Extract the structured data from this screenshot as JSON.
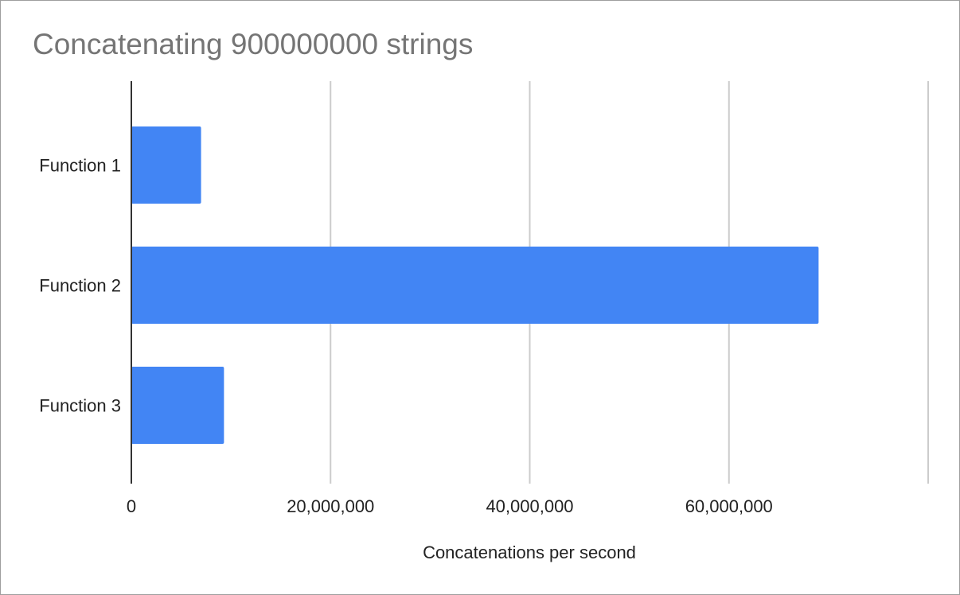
{
  "chart_data": {
    "type": "bar",
    "orientation": "horizontal",
    "title": "Concatenating 900000000 strings",
    "xlabel": "Concatenations per second",
    "ylabel": "",
    "categories": [
      "Function 1",
      "Function 2",
      "Function 3"
    ],
    "values": [
      7000000,
      69000000,
      9300000
    ],
    "xlim": [
      0,
      80000000
    ],
    "xticks": [
      0,
      20000000,
      40000000,
      60000000,
      80000000
    ],
    "xtick_labels": [
      "0",
      "20,000,000",
      "40,000,000",
      "60,000,000",
      ""
    ],
    "grid": "vertical",
    "legend": "none",
    "bar_color": "#4285f4",
    "grid_color": "#cccccc",
    "axis_color": "#333333"
  }
}
